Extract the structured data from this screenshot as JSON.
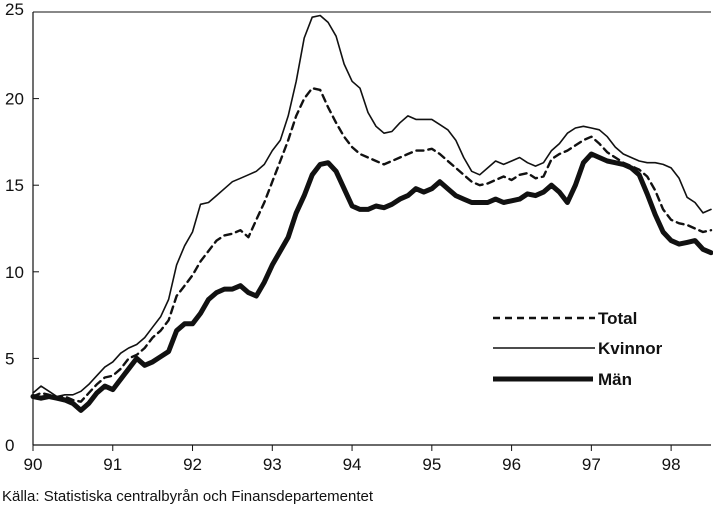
{
  "chart_data": {
    "type": "line",
    "title": "",
    "xlabel": "",
    "ylabel": "",
    "xlim": [
      90,
      98.5
    ],
    "ylim": [
      0,
      25
    ],
    "x_tick_labels": [
      "90",
      "91",
      "92",
      "93",
      "94",
      "95",
      "96",
      "97",
      "98"
    ],
    "y_tick_labels": [
      "0",
      "5",
      "10",
      "15",
      "20",
      "25"
    ],
    "grid": false,
    "legend_position": "lower-right",
    "series": [
      {
        "name": "Total",
        "style": "dashed",
        "x": [
          90.0,
          90.1,
          90.2,
          90.3,
          90.4,
          90.5,
          90.6,
          90.7,
          90.8,
          90.9,
          91.0,
          91.1,
          91.2,
          91.3,
          91.4,
          91.5,
          91.6,
          91.7,
          91.8,
          91.9,
          92.0,
          92.1,
          92.2,
          92.3,
          92.4,
          92.5,
          92.6,
          92.7,
          92.8,
          92.9,
          93.0,
          93.1,
          93.2,
          93.3,
          93.4,
          93.5,
          93.6,
          93.7,
          93.8,
          93.9,
          94.0,
          94.1,
          94.2,
          94.3,
          94.4,
          94.5,
          94.6,
          94.7,
          94.8,
          94.9,
          95.0,
          95.1,
          95.2,
          95.3,
          95.4,
          95.5,
          95.6,
          95.7,
          95.8,
          95.9,
          96.0,
          96.1,
          96.2,
          96.3,
          96.4,
          96.5,
          96.6,
          96.7,
          96.8,
          96.9,
          97.0,
          97.1,
          97.2,
          97.3,
          97.4,
          97.5,
          97.6,
          97.7,
          97.8,
          97.9,
          98.0,
          98.1,
          98.2,
          98.3,
          98.4,
          98.5
        ],
        "values": [
          2.8,
          3.0,
          2.9,
          2.7,
          2.8,
          2.6,
          2.5,
          3.0,
          3.5,
          3.9,
          4.0,
          4.4,
          5.0,
          5.2,
          5.6,
          6.2,
          6.6,
          7.2,
          8.6,
          9.2,
          9.8,
          10.6,
          11.2,
          11.8,
          12.1,
          12.2,
          12.4,
          12.0,
          13.0,
          14.0,
          15.2,
          16.4,
          17.6,
          19.0,
          20.0,
          20.6,
          20.5,
          19.5,
          18.6,
          17.8,
          17.2,
          16.8,
          16.6,
          16.4,
          16.2,
          16.4,
          16.6,
          16.8,
          17.0,
          17.0,
          17.1,
          16.8,
          16.4,
          16.0,
          15.6,
          15.2,
          15.0,
          15.1,
          15.3,
          15.5,
          15.3,
          15.6,
          15.7,
          15.4,
          15.5,
          16.5,
          16.8,
          17.0,
          17.3,
          17.6,
          17.8,
          17.4,
          16.9,
          16.6,
          16.3,
          16.1,
          15.9,
          15.5,
          14.7,
          13.6,
          13.0,
          12.8,
          12.7,
          12.5,
          12.3,
          12.4
        ]
      },
      {
        "name": "Kvinnor",
        "style": "thin",
        "x": [
          90.0,
          90.1,
          90.2,
          90.3,
          90.4,
          90.5,
          90.6,
          90.7,
          90.8,
          90.9,
          91.0,
          91.1,
          91.2,
          91.3,
          91.4,
          91.5,
          91.6,
          91.7,
          91.8,
          91.9,
          92.0,
          92.1,
          92.2,
          92.3,
          92.4,
          92.5,
          92.6,
          92.7,
          92.8,
          92.9,
          93.0,
          93.1,
          93.2,
          93.3,
          93.4,
          93.5,
          93.6,
          93.7,
          93.8,
          93.9,
          94.0,
          94.1,
          94.2,
          94.3,
          94.4,
          94.5,
          94.6,
          94.7,
          94.8,
          94.9,
          95.0,
          95.1,
          95.2,
          95.3,
          95.4,
          95.5,
          95.6,
          95.7,
          95.8,
          95.9,
          96.0,
          96.1,
          96.2,
          96.3,
          96.4,
          96.5,
          96.6,
          96.7,
          96.8,
          96.9,
          97.0,
          97.1,
          97.2,
          97.3,
          97.4,
          97.5,
          97.6,
          97.7,
          97.8,
          97.9,
          98.0,
          98.1,
          98.2,
          98.3,
          98.4,
          98.5
        ],
        "values": [
          3.0,
          3.4,
          3.1,
          2.8,
          2.9,
          2.9,
          3.1,
          3.5,
          4.0,
          4.5,
          4.8,
          5.3,
          5.6,
          5.8,
          6.2,
          6.8,
          7.4,
          8.4,
          10.4,
          11.5,
          12.3,
          13.9,
          14.0,
          14.4,
          14.8,
          15.2,
          15.4,
          15.6,
          15.8,
          16.2,
          17.0,
          17.6,
          19.0,
          21.0,
          23.5,
          24.7,
          24.8,
          24.4,
          23.6,
          22.0,
          21.0,
          20.6,
          19.2,
          18.4,
          18.0,
          18.1,
          18.6,
          19.0,
          18.8,
          18.8,
          18.8,
          18.5,
          18.2,
          17.6,
          16.6,
          15.8,
          15.6,
          16.0,
          16.4,
          16.2,
          16.4,
          16.6,
          16.3,
          16.1,
          16.3,
          17.0,
          17.4,
          18.0,
          18.3,
          18.4,
          18.3,
          18.2,
          17.8,
          17.2,
          16.8,
          16.6,
          16.4,
          16.3,
          16.3,
          16.2,
          16.0,
          15.4,
          14.3,
          14.0,
          13.4,
          13.6
        ]
      },
      {
        "name": "Män",
        "style": "thick",
        "x": [
          90.0,
          90.1,
          90.2,
          90.3,
          90.4,
          90.5,
          90.6,
          90.7,
          90.8,
          90.9,
          91.0,
          91.1,
          91.2,
          91.3,
          91.4,
          91.5,
          91.6,
          91.7,
          91.8,
          91.9,
          92.0,
          92.1,
          92.2,
          92.3,
          92.4,
          92.5,
          92.6,
          92.7,
          92.8,
          92.9,
          93.0,
          93.1,
          93.2,
          93.3,
          93.4,
          93.5,
          93.6,
          93.7,
          93.8,
          93.9,
          94.0,
          94.1,
          94.2,
          94.3,
          94.4,
          94.5,
          94.6,
          94.7,
          94.8,
          94.9,
          95.0,
          95.1,
          95.2,
          95.3,
          95.4,
          95.5,
          95.6,
          95.7,
          95.8,
          95.9,
          96.0,
          96.1,
          96.2,
          96.3,
          96.4,
          96.5,
          96.6,
          96.7,
          96.8,
          96.9,
          97.0,
          97.1,
          97.2,
          97.3,
          97.4,
          97.5,
          97.6,
          97.7,
          97.8,
          97.9,
          98.0,
          98.1,
          98.2,
          98.3,
          98.4,
          98.5
        ],
        "values": [
          2.8,
          2.7,
          2.8,
          2.7,
          2.6,
          2.4,
          2.0,
          2.4,
          3.0,
          3.4,
          3.2,
          3.8,
          4.4,
          5.0,
          4.6,
          4.8,
          5.1,
          5.4,
          6.6,
          7.0,
          7.0,
          7.6,
          8.4,
          8.8,
          9.0,
          9.0,
          9.2,
          8.8,
          8.6,
          9.4,
          10.4,
          11.2,
          12.0,
          13.4,
          14.4,
          15.6,
          16.2,
          16.3,
          15.8,
          14.8,
          13.8,
          13.6,
          13.6,
          13.8,
          13.7,
          13.9,
          14.2,
          14.4,
          14.8,
          14.6,
          14.8,
          15.2,
          14.8,
          14.4,
          14.2,
          14.0,
          14.0,
          14.0,
          14.2,
          14.0,
          14.1,
          14.2,
          14.5,
          14.4,
          14.6,
          15.0,
          14.6,
          14.0,
          15.0,
          16.3,
          16.8,
          16.6,
          16.4,
          16.3,
          16.2,
          16.0,
          15.6,
          14.5,
          13.3,
          12.3,
          11.8,
          11.6,
          11.7,
          11.8,
          11.3,
          11.1
        ]
      }
    ]
  },
  "source_text": "Källa: Statistiska centralbyrån och Finansdepartementet"
}
